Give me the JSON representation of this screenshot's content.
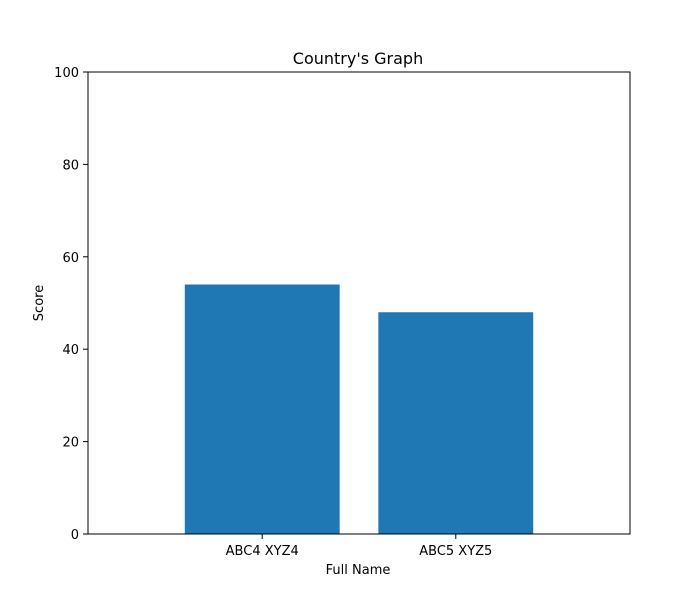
{
  "chart_data": {
    "type": "bar",
    "title": "Country's Graph",
    "xlabel": "Full Name",
    "ylabel": "Score",
    "categories": [
      "ABC4 XYZ4",
      "ABC5 XYZ5"
    ],
    "values": [
      54,
      48
    ],
    "ylim": [
      0,
      100
    ],
    "yticks": [
      0,
      20,
      40,
      60,
      80,
      100
    ],
    "grid": false,
    "bar_color": "#1f77b4"
  }
}
